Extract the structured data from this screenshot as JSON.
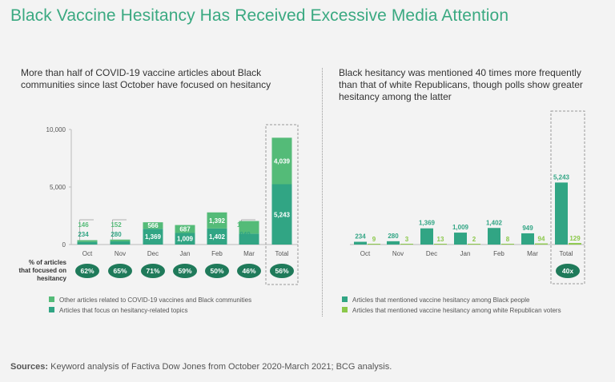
{
  "title": "Black Vaccine Hesitancy Has Received Excessive Media Attention",
  "sources": {
    "label": "Sources:",
    "text": "Keyword analysis of Factiva Dow Jones from October 2020-March 2021; BCG analysis."
  },
  "colors": {
    "dark_green": "#31a584",
    "mid_green": "#54bb78",
    "light_green": "#8bc84a",
    "title_green": "#3aa981",
    "pill_green": "#1f7a5a"
  },
  "chart_data": [
    {
      "type": "bar",
      "stacked": true,
      "subtitle": "More than half of COVID-19 vaccine articles about Black communities since last October have focused on hesitancy",
      "categories": [
        "Oct",
        "Nov",
        "Dec",
        "Jan",
        "Feb",
        "Mar",
        "Total"
      ],
      "series": [
        {
          "name": "Articles that focus on hesitancy-related topics",
          "values": [
            234,
            280,
            1369,
            1009,
            1402,
            949,
            5243
          ],
          "labels": [
            "234",
            "280",
            "1,369",
            "1,009",
            "1,402",
            "949",
            "5,243"
          ]
        },
        {
          "name": "Other articles related to COVID-19 vaccines and Black communities",
          "values": [
            146,
            152,
            566,
            687,
            1392,
            1096,
            4039
          ],
          "labels": [
            "146",
            "152",
            "566",
            "687",
            "1,392",
            "1,096",
            "4,039"
          ]
        }
      ],
      "yticks": [
        "0",
        "5,000",
        "10,000"
      ],
      "ylim": [
        0,
        10000
      ],
      "row_label": "% of articles that focused on hesitancy",
      "percentages": [
        "62%",
        "65%",
        "71%",
        "59%",
        "50%",
        "46%",
        "56%"
      ]
    },
    {
      "type": "bar",
      "grouped": true,
      "subtitle": "Black hesitancy was mentioned 40 times more frequently than that of white Republicans, though polls show greater hesitancy among the latter",
      "categories": [
        "Oct",
        "Nov",
        "Dec",
        "Jan",
        "Feb",
        "Mar",
        "Total"
      ],
      "series": [
        {
          "name": "Articles that mentioned vaccine hesitancy among Black people",
          "values": [
            234,
            280,
            1369,
            1009,
            1402,
            949,
            5243
          ],
          "labels": [
            "234",
            "280",
            "1,369",
            "1,009",
            "1,402",
            "949",
            "5,243"
          ]
        },
        {
          "name": "Articles that mentioned vaccine hesitancy among white Republican voters",
          "values": [
            9,
            3,
            13,
            2,
            8,
            94,
            129
          ],
          "labels": [
            "9",
            "3",
            "13",
            "2",
            "8",
            "94",
            "129"
          ]
        }
      ],
      "ylim": [
        0,
        10000
      ],
      "ratio_label": "40x"
    }
  ]
}
